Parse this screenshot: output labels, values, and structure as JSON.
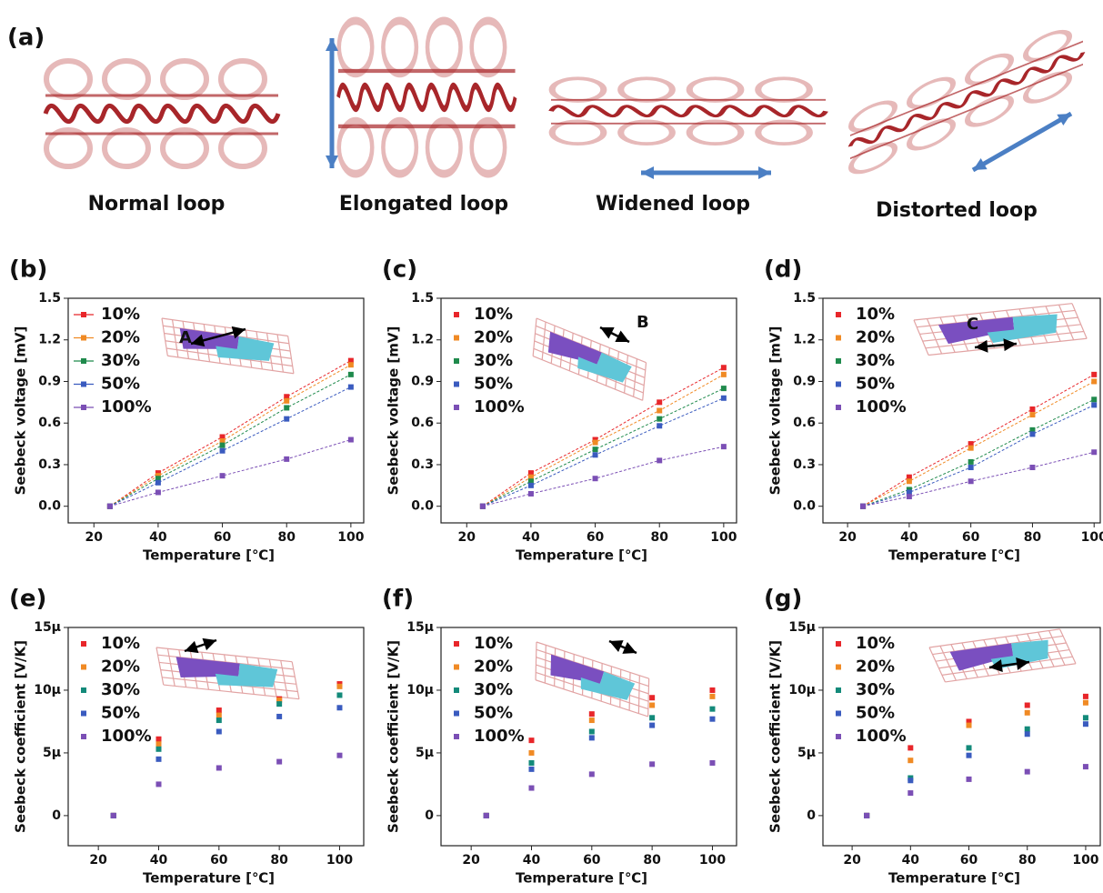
{
  "panel_a": {
    "label": "(a)",
    "captions": [
      "Normal  loop",
      "Elongated  loop",
      "Widened  loop",
      "Distorted  loop"
    ]
  },
  "chart_data": [
    {
      "type": "line",
      "panel": "(b)",
      "inset_label": "A",
      "x_label": "Temperature [℃]",
      "y_label": "Seebeck voltage [mV]",
      "x": [
        25,
        40,
        60,
        80,
        100
      ],
      "xlim": [
        12,
        104
      ],
      "xticks": [
        20,
        40,
        60,
        80,
        100
      ],
      "ylim": [
        -0.12,
        1.5
      ],
      "yticks": [
        {
          "value": 0,
          "label": "0.0"
        },
        0.3,
        0.6,
        0.9,
        1.2,
        1.5
      ],
      "series": [
        {
          "name": "10%",
          "color": "#e8262a",
          "values": [
            0,
            0.24,
            0.5,
            0.79,
            1.05
          ]
        },
        {
          "name": "20%",
          "color": "#f08a24",
          "values": [
            0,
            0.22,
            0.47,
            0.76,
            1.02
          ]
        },
        {
          "name": "30%",
          "color": "#1f8a4c",
          "values": [
            0,
            0.2,
            0.44,
            0.71,
            0.95
          ]
        },
        {
          "name": "50%",
          "color": "#3a5bbf",
          "values": [
            0,
            0.17,
            0.4,
            0.63,
            0.86
          ]
        },
        {
          "name": "100%",
          "color": "#7b4fb5",
          "values": [
            0,
            0.1,
            0.22,
            0.34,
            0.48
          ]
        }
      ]
    },
    {
      "type": "line",
      "panel": "(c)",
      "inset_label": "B",
      "x_label": "Temperature [℃]",
      "y_label": "Seebeck voltage [mV]",
      "x": [
        25,
        40,
        60,
        80,
        100
      ],
      "xlim": [
        12,
        104
      ],
      "xticks": [
        20,
        40,
        60,
        80,
        100
      ],
      "ylim": [
        -0.12,
        1.5
      ],
      "yticks": [
        {
          "value": 0,
          "label": "0.0"
        },
        0.3,
        0.6,
        0.9,
        1.2,
        1.5
      ],
      "series": [
        {
          "name": "10%",
          "color": "#e8262a",
          "values": [
            0,
            0.24,
            0.48,
            0.75,
            1.0
          ]
        },
        {
          "name": "20%",
          "color": "#f08a24",
          "values": [
            0,
            0.21,
            0.46,
            0.69,
            0.95
          ]
        },
        {
          "name": "30%",
          "color": "#1f8a4c",
          "values": [
            0,
            0.18,
            0.41,
            0.63,
            0.85
          ]
        },
        {
          "name": "50%",
          "color": "#3a5bbf",
          "values": [
            0,
            0.15,
            0.37,
            0.58,
            0.78
          ]
        },
        {
          "name": "100%",
          "color": "#7b4fb5",
          "values": [
            0,
            0.09,
            0.2,
            0.33,
            0.43
          ]
        }
      ]
    },
    {
      "type": "line",
      "panel": "(d)",
      "inset_label": "C",
      "x_label": "Temperature [℃]",
      "y_label": "Seebeck voltage [mV]",
      "x": [
        25,
        40,
        60,
        80,
        100
      ],
      "xlim": [
        12,
        102
      ],
      "xticks": [
        20,
        40,
        60,
        80,
        100
      ],
      "ylim": [
        -0.12,
        1.5
      ],
      "yticks": [
        {
          "value": 0,
          "label": "0.0"
        },
        0.3,
        0.6,
        0.9,
        1.2,
        1.5
      ],
      "series": [
        {
          "name": "10%",
          "color": "#e8262a",
          "values": [
            0,
            0.21,
            0.45,
            0.7,
            0.95
          ]
        },
        {
          "name": "20%",
          "color": "#f08a24",
          "values": [
            0,
            0.18,
            0.42,
            0.66,
            0.9
          ]
        },
        {
          "name": "30%",
          "color": "#1f8a4c",
          "values": [
            0,
            0.12,
            0.32,
            0.55,
            0.77
          ]
        },
        {
          "name": "50%",
          "color": "#3a5bbf",
          "values": [
            0,
            0.1,
            0.28,
            0.52,
            0.73
          ]
        },
        {
          "name": "100%",
          "color": "#7b4fb5",
          "values": [
            0,
            0.07,
            0.18,
            0.28,
            0.39
          ]
        }
      ]
    },
    {
      "type": "scatter",
      "panel": "(e)",
      "x_label": "Temperature [℃]",
      "y_label": "Seebeck coefficient [V/K]",
      "x": [
        25,
        40,
        60,
        80,
        100
      ],
      "xlim": [
        10,
        108
      ],
      "xticks": [
        20,
        40,
        60,
        80,
        100
      ],
      "ylim": [
        -2.4e-06,
        1.5e-05
      ],
      "yticks": [
        0,
        {
          "value": 5e-06,
          "label": "5μ"
        },
        {
          "value": 1e-05,
          "label": "10μ"
        },
        {
          "value": 1.5e-05,
          "label": "15μ"
        }
      ],
      "series": [
        {
          "name": "10%",
          "color": "#e8262a",
          "values": [
            0,
            6.1e-06,
            8.4e-06,
            9.3e-06,
            1.05e-05
          ]
        },
        {
          "name": "20%",
          "color": "#f08a24",
          "values": [
            0,
            5.7e-06,
            8e-06,
            9.2e-06,
            1.03e-05
          ]
        },
        {
          "name": "30%",
          "color": "#138a7a",
          "values": [
            0,
            5.3e-06,
            7.6e-06,
            8.9e-06,
            9.6e-06
          ]
        },
        {
          "name": "50%",
          "color": "#3a5bbf",
          "values": [
            0,
            4.5e-06,
            6.7e-06,
            7.9e-06,
            8.6e-06
          ]
        },
        {
          "name": "100%",
          "color": "#7b4fb5",
          "values": [
            0,
            2.5e-06,
            3.8e-06,
            4.3e-06,
            4.8e-06
          ]
        }
      ]
    },
    {
      "type": "scatter",
      "panel": "(f)",
      "x_label": "Temperature [℃]",
      "y_label": "Seebeck coefficient [V/K]",
      "x": [
        25,
        40,
        60,
        80,
        100
      ],
      "xlim": [
        10,
        108
      ],
      "xticks": [
        20,
        40,
        60,
        80,
        100
      ],
      "ylim": [
        -2.4e-06,
        1.5e-05
      ],
      "yticks": [
        0,
        {
          "value": 5e-06,
          "label": "5μ"
        },
        {
          "value": 1e-05,
          "label": "10μ"
        },
        {
          "value": 1.5e-05,
          "label": "15μ"
        }
      ],
      "series": [
        {
          "name": "10%",
          "color": "#e8262a",
          "values": [
            0,
            6e-06,
            8.1e-06,
            9.4e-06,
            1e-05
          ]
        },
        {
          "name": "20%",
          "color": "#f08a24",
          "values": [
            0,
            5e-06,
            7.6e-06,
            8.8e-06,
            9.5e-06
          ]
        },
        {
          "name": "30%",
          "color": "#138a7a",
          "values": [
            0,
            4.2e-06,
            6.7e-06,
            7.8e-06,
            8.5e-06
          ]
        },
        {
          "name": "50%",
          "color": "#3a5bbf",
          "values": [
            0,
            3.7e-06,
            6.2e-06,
            7.2e-06,
            7.7e-06
          ]
        },
        {
          "name": "100%",
          "color": "#7b4fb5",
          "values": [
            0,
            2.2e-06,
            3.3e-06,
            4.1e-06,
            4.2e-06
          ]
        }
      ]
    },
    {
      "type": "scatter",
      "panel": "(g)",
      "x_label": "Temperature [℃]",
      "y_label": "Seebeck coefficient [V/K]",
      "x": [
        25,
        40,
        60,
        80,
        100
      ],
      "xlim": [
        10,
        105
      ],
      "xticks": [
        20,
        40,
        60,
        80,
        100
      ],
      "ylim": [
        -2.4e-06,
        1.5e-05
      ],
      "yticks": [
        0,
        {
          "value": 5e-06,
          "label": "5μ"
        },
        {
          "value": 1e-05,
          "label": "10μ"
        },
        {
          "value": 1.5e-05,
          "label": "15μ"
        }
      ],
      "series": [
        {
          "name": "10%",
          "color": "#e8262a",
          "values": [
            0,
            5.4e-06,
            7.5e-06,
            8.8e-06,
            9.5e-06
          ]
        },
        {
          "name": "20%",
          "color": "#f08a24",
          "values": [
            0,
            4.4e-06,
            7.2e-06,
            8.2e-06,
            9e-06
          ]
        },
        {
          "name": "30%",
          "color": "#138a7a",
          "values": [
            0,
            3e-06,
            5.4e-06,
            6.9e-06,
            7.8e-06
          ]
        },
        {
          "name": "50%",
          "color": "#3a5bbf",
          "values": [
            0,
            2.8e-06,
            4.8e-06,
            6.5e-06,
            7.3e-06
          ]
        },
        {
          "name": "100%",
          "color": "#7b4fb5",
          "values": [
            0,
            1.8e-06,
            2.9e-06,
            3.5e-06,
            3.9e-06
          ]
        }
      ]
    }
  ]
}
